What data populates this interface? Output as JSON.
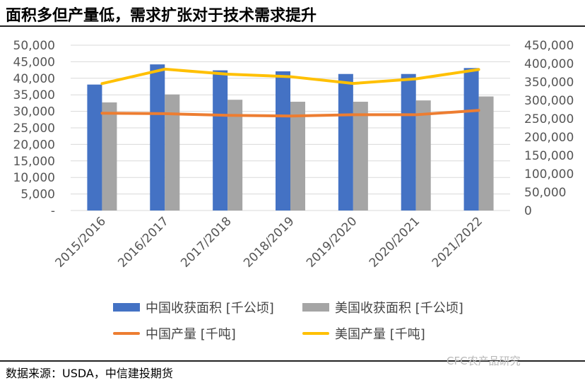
{
  "header": {
    "title": "面积多但产量低，需求扩张对于技术需求提升"
  },
  "footer": {
    "source": "数据来源：USDA，中信建投期货",
    "watermark": "CFC农产品研究"
  },
  "colors": {
    "china_area": "#4472C4",
    "us_area": "#A5A5A5",
    "china_production": "#ED7D31",
    "us_production": "#FFC000",
    "grid": "#d9d9d9"
  },
  "chart_data": {
    "type": "bar",
    "categories": [
      "2015/2016",
      "2016/2017",
      "2017/2018",
      "2018/2019",
      "2019/2020",
      "2020/2021",
      "2021/2022"
    ],
    "left_axis": {
      "ylim": [
        0,
        50000
      ],
      "tick_labels": [
        "-",
        "5,000",
        "10,000",
        "15,000",
        "20,000",
        "25,000",
        "30,000",
        "35,000",
        "40,000",
        "45,000",
        "50,000"
      ]
    },
    "right_axis": {
      "ylim": [
        0,
        450000
      ],
      "tick_labels": [
        "0",
        "50,000",
        "100,000",
        "150,000",
        "200,000",
        "250,000",
        "300,000",
        "350,000",
        "400,000",
        "450,000"
      ]
    },
    "series": [
      {
        "name": "中国收获面积 [千公顷]",
        "type": "bar",
        "axis": "left",
        "color": "#4472C4",
        "values": [
          38100,
          44200,
          42400,
          42100,
          41300,
          41300,
          43100
        ]
      },
      {
        "name": "美国收获面积 [千公顷]",
        "type": "bar",
        "axis": "left",
        "color": "#A5A5A5",
        "values": [
          32700,
          35100,
          33500,
          32900,
          32900,
          33300,
          34500
        ]
      },
      {
        "name": "中国产量 [千吨]",
        "type": "line",
        "axis": "right",
        "color": "#ED7D31",
        "values": [
          265000,
          263600,
          259100,
          257200,
          260800,
          260700,
          272500
        ]
      },
      {
        "name": "美国产量 [千吨]",
        "type": "line",
        "axis": "right",
        "color": "#FFC000",
        "values": [
          345500,
          384800,
          371100,
          364300,
          345900,
          358400,
          383900
        ]
      }
    ],
    "grid": true,
    "legend_position": "bottom"
  }
}
